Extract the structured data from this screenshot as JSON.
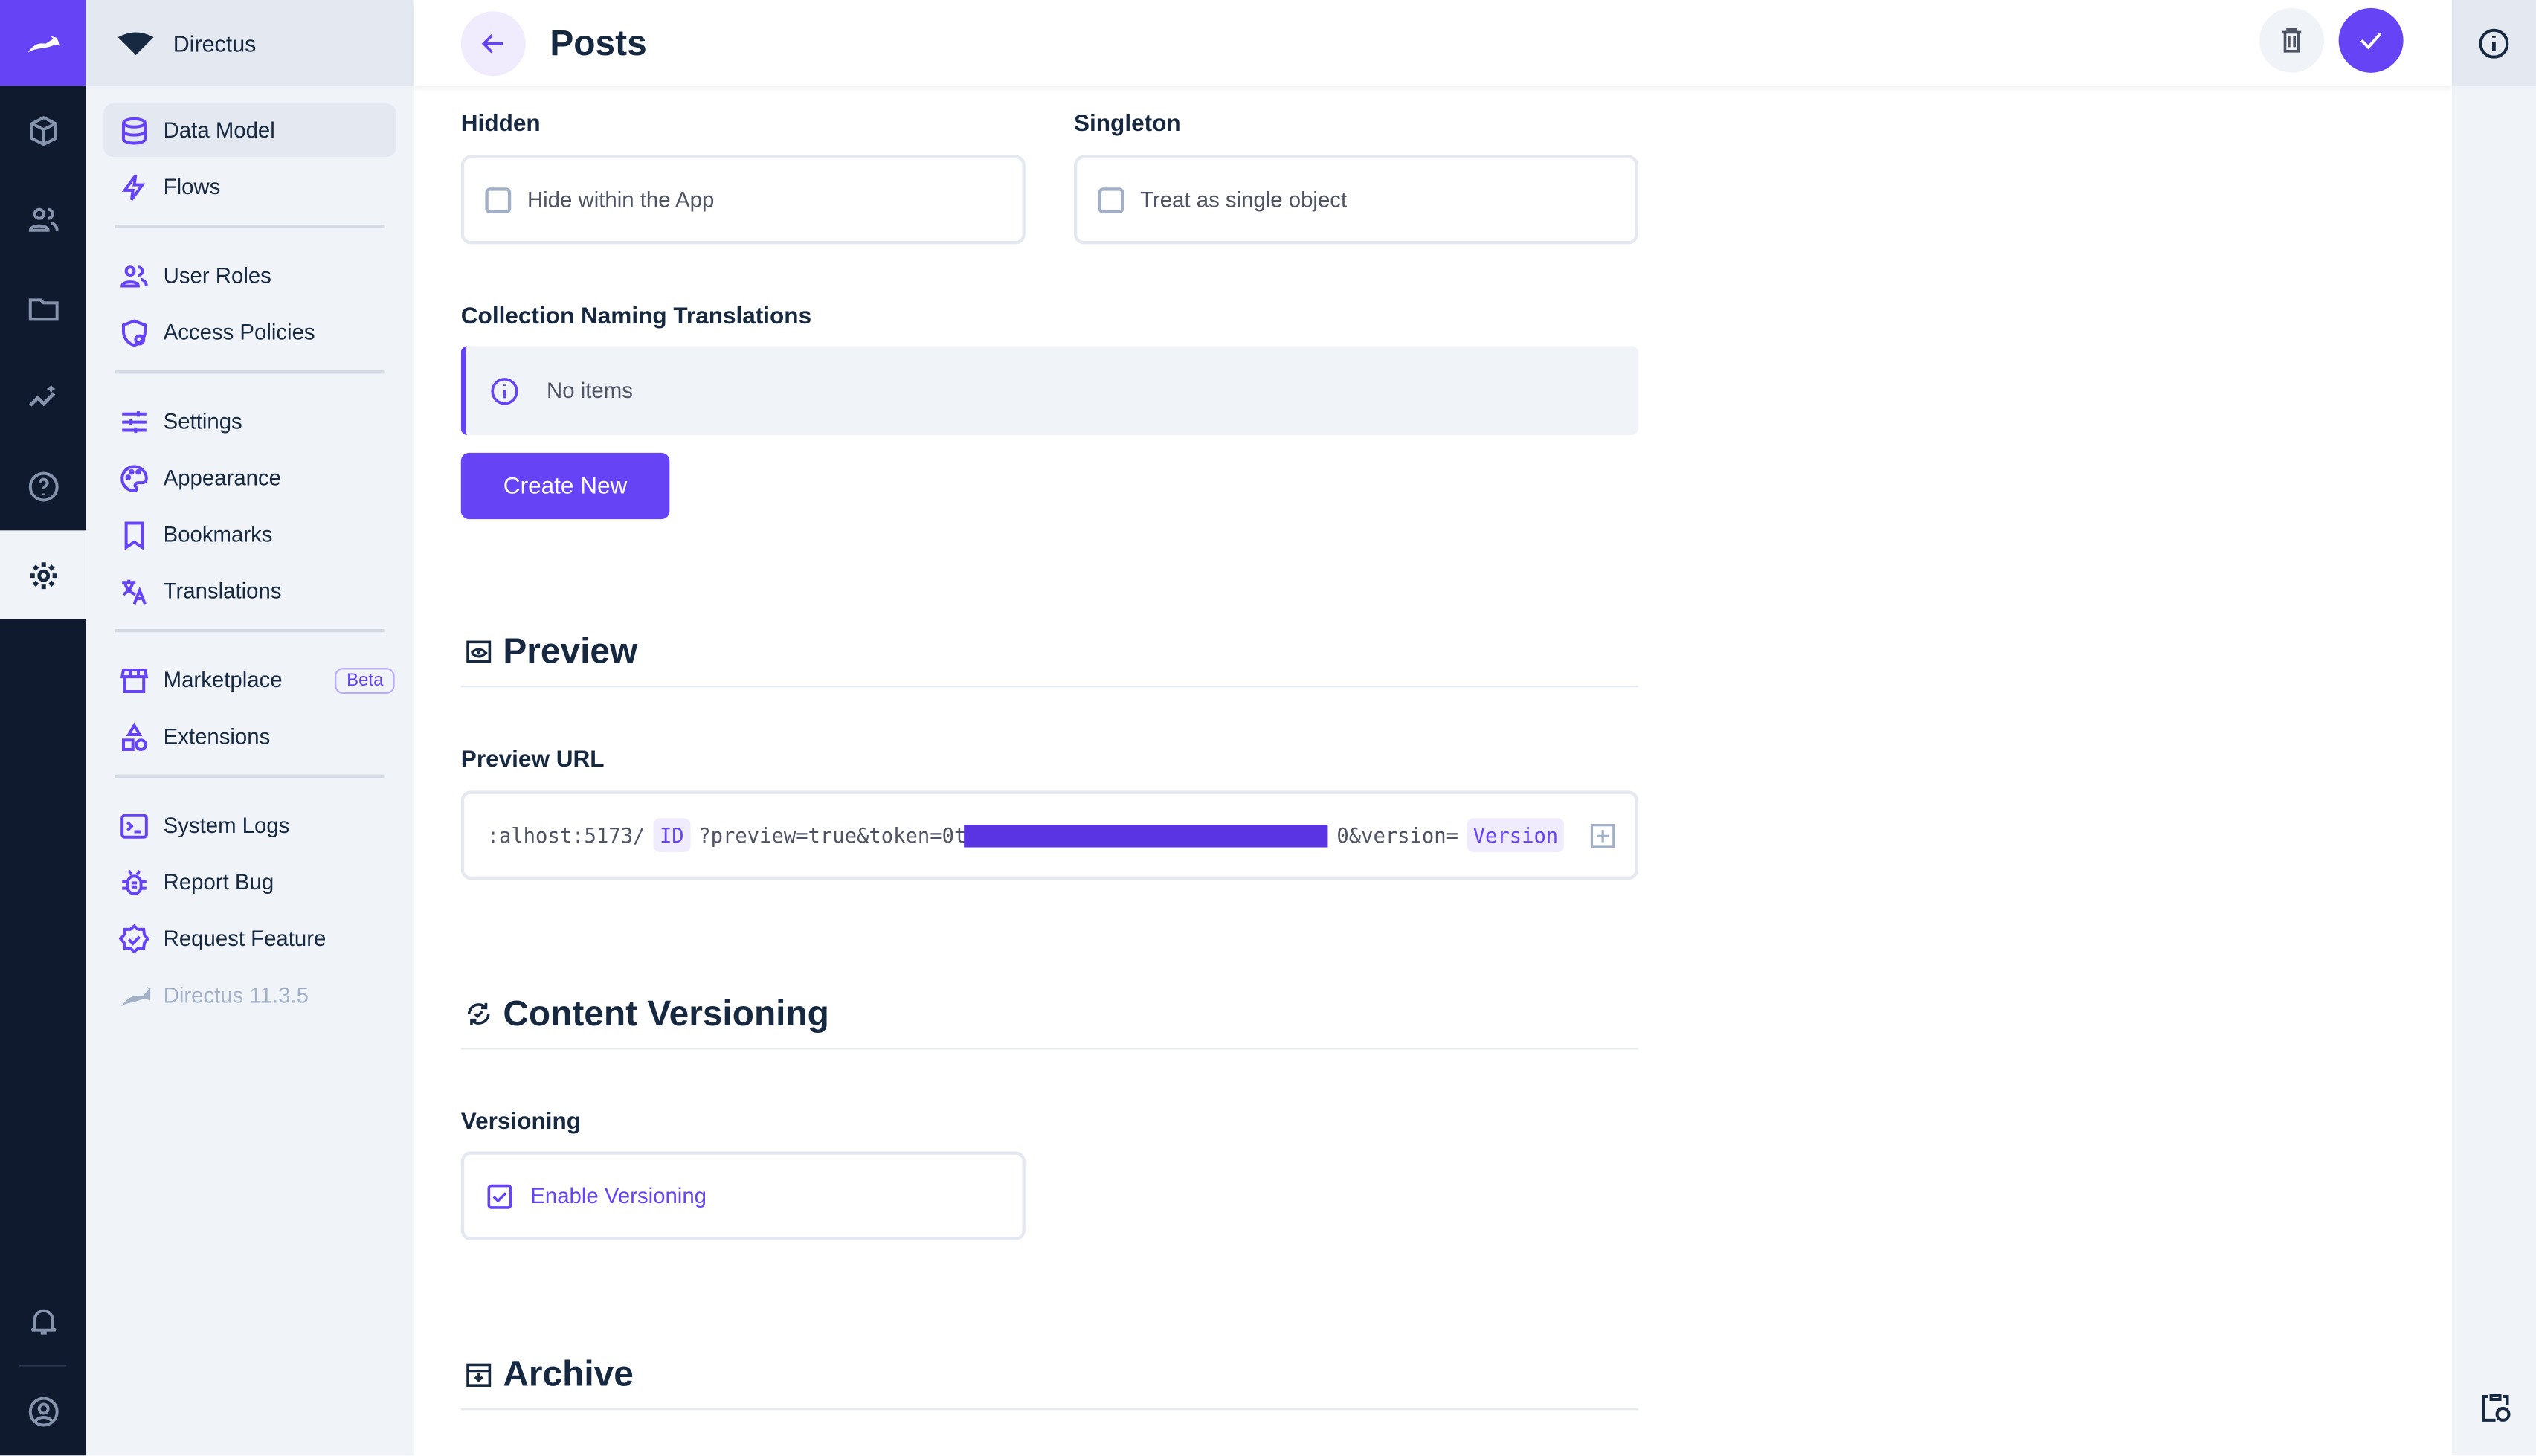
{
  "colors": {
    "accent": "#6644f5",
    "rail": "#101a2e",
    "nav_bg": "#f0f4f9"
  },
  "rail": {
    "items": [
      "box-icon",
      "users-icon",
      "folder-icon",
      "insights-icon",
      "help-icon",
      "settings-icon"
    ],
    "bottom": [
      "bell-icon",
      "account-icon"
    ]
  },
  "project": {
    "name": "Directus"
  },
  "nav": {
    "groups": [
      [
        {
          "label": "Data Model",
          "icon": "database",
          "active": true
        },
        {
          "label": "Flows",
          "icon": "bolt"
        }
      ],
      [
        {
          "label": "User Roles",
          "icon": "users"
        },
        {
          "label": "Access Policies",
          "icon": "shield"
        }
      ],
      [
        {
          "label": "Settings",
          "icon": "sliders"
        },
        {
          "label": "Appearance",
          "icon": "palette"
        },
        {
          "label": "Bookmarks",
          "icon": "bookmark"
        },
        {
          "label": "Translations",
          "icon": "translate"
        }
      ],
      [
        {
          "label": "Marketplace",
          "icon": "store",
          "badge": "Beta"
        },
        {
          "label": "Extensions",
          "icon": "shapes"
        }
      ],
      [
        {
          "label": "System Logs",
          "icon": "terminal"
        },
        {
          "label": "Report Bug",
          "icon": "bug"
        },
        {
          "label": "Request Feature",
          "icon": "verified"
        },
        {
          "label": "Directus 11.3.5",
          "icon": "rabbit",
          "muted": true
        }
      ]
    ]
  },
  "header": {
    "title": "Posts"
  },
  "form": {
    "hidden": {
      "label": "Hidden",
      "option": "Hide within the App",
      "checked": false
    },
    "singleton": {
      "label": "Singleton",
      "option": "Treat as single object",
      "checked": false
    },
    "translations": {
      "label": "Collection Naming Translations",
      "empty": "No items",
      "create": "Create New"
    },
    "preview": {
      "heading": "Preview",
      "url_label": "Preview URL",
      "url_parts": [
        ":alhost:5173/",
        "ID",
        "?preview=true&token=0t",
        "0&version=",
        "Version"
      ]
    },
    "versioning": {
      "heading": "Content Versioning",
      "label": "Versioning",
      "option": "Enable Versioning",
      "checked": true
    },
    "archive": {
      "heading": "Archive"
    }
  }
}
